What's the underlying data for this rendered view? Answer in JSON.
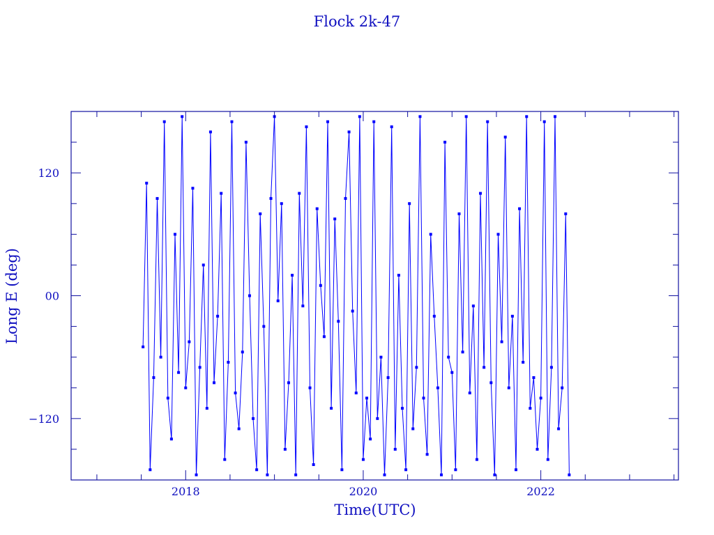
{
  "chart_data": {
    "type": "line",
    "title": "Flock 2k-47",
    "xlabel": "Time(UTC)",
    "ylabel": "Long E (deg)",
    "xlim": [
      2016.71,
      2023.55
    ],
    "ylim": [
      -180,
      180
    ],
    "x_ticks": [
      2018,
      2020,
      2022
    ],
    "x_tick_labels": [
      "2018",
      "2020",
      "2022"
    ],
    "x_minor_step": 0.5,
    "y_ticks": [
      120,
      0,
      -120
    ],
    "y_tick_labels": [
      "120",
      "00",
      "−120"
    ],
    "y_minor_step": 30,
    "grid": false,
    "markers": "square",
    "colors": {
      "series": "#0000ff",
      "axes": "#1010a0",
      "text": "#1010c0"
    },
    "series": [
      {
        "x": [
          2017.52,
          2017.56,
          2017.6,
          2017.64,
          2017.68,
          2017.72,
          2017.76,
          2017.8,
          2017.84,
          2017.88,
          2017.92,
          2017.96,
          2018.0,
          2018.04,
          2018.08,
          2018.12,
          2018.16,
          2018.2,
          2018.24,
          2018.28,
          2018.32,
          2018.36,
          2018.4,
          2018.44,
          2018.48,
          2018.52,
          2018.56,
          2018.6,
          2018.64,
          2018.68,
          2018.72,
          2018.76,
          2018.8,
          2018.84,
          2018.88,
          2018.92,
          2018.96,
          2019.0,
          2019.04,
          2019.08,
          2019.12,
          2019.16,
          2019.2,
          2019.24,
          2019.28,
          2019.32,
          2019.36,
          2019.4,
          2019.44,
          2019.48,
          2019.52,
          2019.56,
          2019.6,
          2019.64,
          2019.68,
          2019.72,
          2019.76,
          2019.8,
          2019.84,
          2019.88,
          2019.92,
          2019.96,
          2020.0,
          2020.04,
          2020.08,
          2020.12,
          2020.16,
          2020.2,
          2020.24,
          2020.28,
          2020.32,
          2020.36,
          2020.4,
          2020.44,
          2020.48,
          2020.52,
          2020.56,
          2020.6,
          2020.64,
          2020.68,
          2020.72,
          2020.76,
          2020.8,
          2020.84,
          2020.88,
          2020.92,
          2020.96,
          2021.0,
          2021.04,
          2021.08,
          2021.12,
          2021.16,
          2021.2,
          2021.24,
          2021.28,
          2021.32,
          2021.36,
          2021.4,
          2021.44,
          2021.48,
          2021.52,
          2021.56,
          2021.6,
          2021.64,
          2021.68,
          2021.72,
          2021.76,
          2021.8,
          2021.84,
          2021.88,
          2021.92,
          2021.96,
          2022.0,
          2022.04,
          2022.08,
          2022.12,
          2022.16,
          2022.2,
          2022.24,
          2022.28,
          2022.32
        ],
        "y": [
          -50,
          110,
          -170,
          -80,
          95,
          -60,
          170,
          -100,
          -140,
          60,
          -75,
          175,
          -90,
          -45,
          105,
          -175,
          -70,
          30,
          -110,
          160,
          -85,
          -20,
          100,
          -160,
          -65,
          170,
          -95,
          -130,
          -55,
          150,
          0,
          -120,
          -170,
          80,
          -30,
          -175,
          95,
          175,
          -5,
          90,
          -150,
          -85,
          20,
          -175,
          100,
          -10,
          165,
          -90,
          -165,
          85,
          10,
          -40,
          170,
          -110,
          75,
          -25,
          -170,
          95,
          160,
          -15,
          -95,
          175,
          -160,
          -100,
          -140,
          170,
          -120,
          -60,
          -175,
          -80,
          165,
          -150,
          20,
          -110,
          -170,
          90,
          -130,
          -70,
          175,
          -100,
          -155,
          60,
          -20,
          -90,
          -175,
          150,
          -60,
          -75,
          -170,
          80,
          -55,
          175,
          -95,
          -10,
          -160,
          100,
          -70,
          170,
          -85,
          -175,
          60,
          -45,
          155,
          -90,
          -20,
          -170,
          85,
          -65,
          175,
          -110,
          -80,
          -150,
          -100,
          170,
          -160,
          -70,
          175,
          -130,
          -90,
          80,
          -175
        ]
      }
    ]
  }
}
